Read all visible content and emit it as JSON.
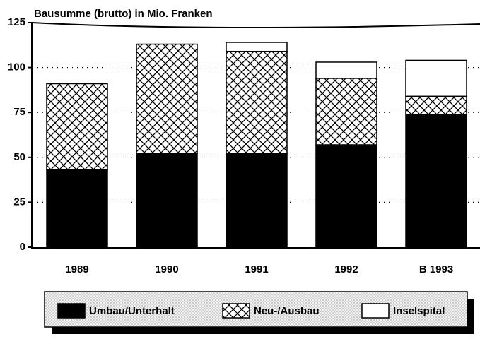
{
  "chart_data": {
    "type": "stacked_bar",
    "title": "Bausumme (brutto) in Mio. Franken",
    "categories": [
      "1989",
      "1990",
      "1991",
      "1992",
      "B 1993"
    ],
    "series": [
      {
        "name": "Umbau/Unterhalt",
        "color": "#000000",
        "hatch": false,
        "values": [
          43,
          52,
          52,
          57,
          74
        ]
      },
      {
        "name": "Neu-/Ausbau",
        "color": "#ffffff",
        "hatch": true,
        "values": [
          48,
          61,
          57,
          37,
          10
        ]
      },
      {
        "name": "Inselspital",
        "color": "#ffffff",
        "hatch": false,
        "values": [
          0,
          0,
          5,
          9,
          20
        ]
      }
    ],
    "ylim": [
      0,
      125
    ],
    "yticks": [
      0,
      25,
      50,
      75,
      100,
      125
    ],
    "grid": true
  }
}
